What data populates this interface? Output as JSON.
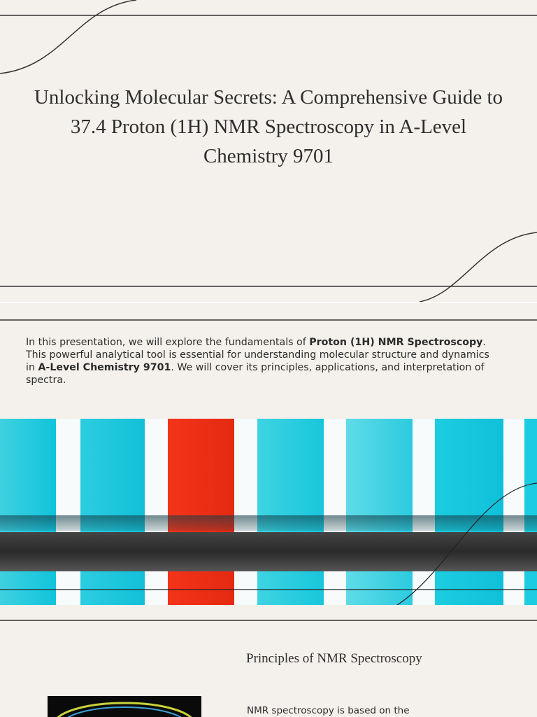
{
  "title": "Unlocking Molecular Secrets: A Comprehensive Guide to 37.4 Proton (1H) NMR Spectroscopy in A-Level Chemistry 9701",
  "intro": {
    "parts": [
      "In this presentation, we will explore the fundamentals of ",
      "Proton (1H) NMR Spectroscopy",
      ". This powerful analytical tool is essential for understanding molecular structure and dynamics in ",
      "A-Level Chemistry 9701",
      ". We will cover its principles, applications, and interpretation of spectra."
    ]
  },
  "section": {
    "heading": "Principles of NMR Spectroscopy",
    "body": "NMR spectroscopy is based on the"
  }
}
